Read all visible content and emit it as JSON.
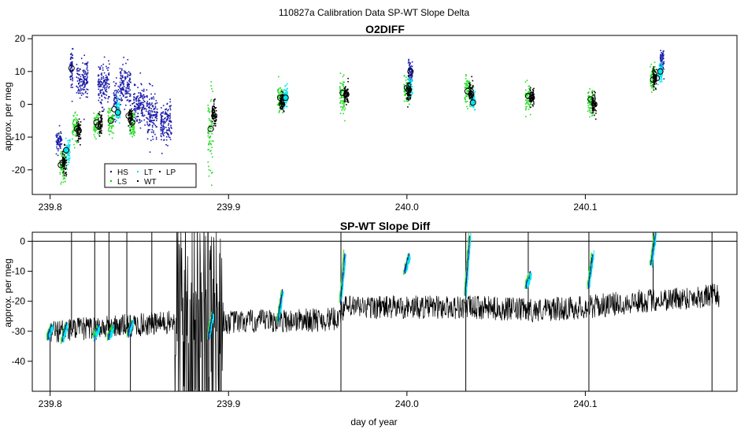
{
  "figure": {
    "title": "110827a   Calibration Data SP-WT Slope Delta",
    "xlabel": "day of year"
  },
  "chart_data": [
    {
      "type": "scatter",
      "title": "O2DIFF",
      "ylabel": "approx. per meg",
      "xlim": [
        239.79,
        240.185
      ],
      "ylim": [
        -27.5,
        21
      ],
      "xticks": [
        239.8,
        239.9,
        240.0,
        240.1
      ],
      "xtick_labels": [
        "239.8",
        "239.9",
        "240.0",
        "240.1"
      ],
      "yticks": [
        -20,
        -10,
        0,
        10,
        20
      ],
      "ytick_labels": [
        "-20",
        "-10",
        "0",
        "10",
        "20"
      ],
      "legend": {
        "position": "bottom-left",
        "entries": [
          {
            "label": "HS",
            "color": "#000080"
          },
          {
            "label": "LS",
            "color": "#00cc00"
          },
          {
            "label": "LT",
            "color": "#00e5ee"
          },
          {
            "label": "WT",
            "color": "#000000"
          },
          {
            "label": "LP",
            "color": "#000000"
          }
        ]
      },
      "series": [
        {
          "name": "HS",
          "color": "#1a1aaa",
          "clusters": [
            {
              "x": 239.805,
              "w": 0.002,
              "y": -11,
              "sd": 1.5
            },
            {
              "x": 239.812,
              "w": 0.001,
              "y": 11,
              "sd": 2.5
            },
            {
              "x": 239.818,
              "w": 0.004,
              "y": 8,
              "sd": 3
            },
            {
              "x": 239.83,
              "w": 0.004,
              "y": 6,
              "sd": 3
            },
            {
              "x": 239.837,
              "w": 0.002,
              "y": 1,
              "sd": 3
            },
            {
              "x": 239.842,
              "w": 0.004,
              "y": 6,
              "sd": 3
            },
            {
              "x": 239.85,
              "w": 0.004,
              "y": 0,
              "sd": 3
            },
            {
              "x": 239.857,
              "w": 0.004,
              "y": -3,
              "sd": 3
            },
            {
              "x": 239.865,
              "w": 0.004,
              "y": -6,
              "sd": 3
            },
            {
              "x": 240.002,
              "w": 0.0015,
              "y": 10,
              "sd": 1.5
            },
            {
              "x": 240.143,
              "w": 0.0015,
              "y": 13,
              "sd": 2
            }
          ]
        },
        {
          "name": "LS",
          "color": "#22dd22",
          "clusters": [
            {
              "x": 239.807,
              "w": 0.002,
              "y": -19,
              "sd": 3
            },
            {
              "x": 239.814,
              "w": 0.002,
              "y": -7,
              "sd": 2
            },
            {
              "x": 239.826,
              "w": 0.002,
              "y": -6,
              "sd": 2
            },
            {
              "x": 239.834,
              "w": 0.002,
              "y": -5,
              "sd": 2
            },
            {
              "x": 239.846,
              "w": 0.002,
              "y": -6,
              "sd": 2
            },
            {
              "x": 239.89,
              "w": 0.002,
              "y": -8,
              "sd": 6
            },
            {
              "x": 239.929,
              "w": 0.002,
              "y": 2,
              "sd": 2
            },
            {
              "x": 239.964,
              "w": 0.002,
              "y": 3,
              "sd": 2.5
            },
            {
              "x": 240.0,
              "w": 0.002,
              "y": 4,
              "sd": 2
            },
            {
              "x": 240.034,
              "w": 0.002,
              "y": 4,
              "sd": 2
            },
            {
              "x": 240.068,
              "w": 0.002,
              "y": 2,
              "sd": 2
            },
            {
              "x": 240.103,
              "w": 0.002,
              "y": 1,
              "sd": 2
            },
            {
              "x": 240.138,
              "w": 0.002,
              "y": 8,
              "sd": 2
            }
          ]
        },
        {
          "name": "LT",
          "color": "#00e5ee",
          "clusters": [
            {
              "x": 239.81,
              "w": 0.0015,
              "y": -14,
              "sd": 2
            },
            {
              "x": 239.838,
              "w": 0.0015,
              "y": -2,
              "sd": 1.5
            },
            {
              "x": 239.932,
              "w": 0.0015,
              "y": 2,
              "sd": 2
            },
            {
              "x": 240.002,
              "w": 0.0015,
              "y": 5,
              "sd": 1.5
            },
            {
              "x": 240.037,
              "w": 0.0015,
              "y": 1,
              "sd": 1.5
            },
            {
              "x": 240.142,
              "w": 0.0015,
              "y": 10,
              "sd": 1.5
            }
          ]
        },
        {
          "name": "WT",
          "color": "#000000",
          "clusters": [
            {
              "x": 239.808,
              "w": 0.0015,
              "y": -18,
              "sd": 2
            },
            {
              "x": 239.816,
              "w": 0.0015,
              "y": -8,
              "sd": 1.5
            },
            {
              "x": 239.828,
              "w": 0.0015,
              "y": -6,
              "sd": 1.5
            },
            {
              "x": 239.845,
              "w": 0.0015,
              "y": -4,
              "sd": 1.5
            },
            {
              "x": 239.892,
              "w": 0.0015,
              "y": -3,
              "sd": 2
            },
            {
              "x": 239.93,
              "w": 0.0015,
              "y": 1,
              "sd": 1.5
            },
            {
              "x": 239.966,
              "w": 0.0015,
              "y": 3,
              "sd": 1.5
            },
            {
              "x": 240.001,
              "w": 0.0015,
              "y": 4,
              "sd": 1.5
            },
            {
              "x": 240.036,
              "w": 0.0015,
              "y": 3,
              "sd": 1.5
            },
            {
              "x": 240.07,
              "w": 0.0015,
              "y": 2,
              "sd": 1.5
            },
            {
              "x": 240.105,
              "w": 0.0015,
              "y": 0,
              "sd": 1.5
            },
            {
              "x": 240.139,
              "w": 0.0015,
              "y": 8,
              "sd": 1.5
            }
          ]
        }
      ],
      "means": [
        {
          "x": 239.806,
          "y": -18.5,
          "fill": "none"
        },
        {
          "x": 239.807,
          "y": -17.8,
          "fill": "none"
        },
        {
          "x": 239.809,
          "y": -14,
          "fill": "#00e5ee"
        },
        {
          "x": 239.812,
          "y": 11,
          "fill": "none"
        },
        {
          "x": 239.815,
          "y": -7.5,
          "fill": "none"
        },
        {
          "x": 239.816,
          "y": -8,
          "fill": "none"
        },
        {
          "x": 239.826,
          "y": -5.5,
          "fill": "none"
        },
        {
          "x": 239.827,
          "y": -6.5,
          "fill": "none"
        },
        {
          "x": 239.834,
          "y": -5,
          "fill": "none"
        },
        {
          "x": 239.836,
          "y": -1.5,
          "fill": "none"
        },
        {
          "x": 239.838,
          "y": -2.5,
          "fill": "#00e5ee"
        },
        {
          "x": 239.844,
          "y": -3.5,
          "fill": "none"
        },
        {
          "x": 239.846,
          "y": -5.5,
          "fill": "none"
        },
        {
          "x": 239.89,
          "y": -7.5,
          "fill": "none"
        },
        {
          "x": 239.892,
          "y": -3.5,
          "fill": "none"
        },
        {
          "x": 239.929,
          "y": 2,
          "fill": "none"
        },
        {
          "x": 239.93,
          "y": 0,
          "fill": "none"
        },
        {
          "x": 239.932,
          "y": 2,
          "fill": "#00e5ee"
        },
        {
          "x": 239.964,
          "y": 3.5,
          "fill": "none"
        },
        {
          "x": 239.966,
          "y": 3,
          "fill": "none"
        },
        {
          "x": 240.0,
          "y": 5,
          "fill": "none"
        },
        {
          "x": 240.001,
          "y": 4.5,
          "fill": "none"
        },
        {
          "x": 240.002,
          "y": 10,
          "fill": "none"
        },
        {
          "x": 240.034,
          "y": 4,
          "fill": "none"
        },
        {
          "x": 240.036,
          "y": 3,
          "fill": "none"
        },
        {
          "x": 240.037,
          "y": 0.5,
          "fill": "#00e5ee"
        },
        {
          "x": 240.068,
          "y": 2.5,
          "fill": "none"
        },
        {
          "x": 240.07,
          "y": 2,
          "fill": "none"
        },
        {
          "x": 240.103,
          "y": 1.5,
          "fill": "none"
        },
        {
          "x": 240.105,
          "y": 0,
          "fill": "none"
        },
        {
          "x": 240.138,
          "y": 7.5,
          "fill": "none"
        },
        {
          "x": 240.14,
          "y": 8,
          "fill": "none"
        },
        {
          "x": 240.142,
          "y": 10,
          "fill": "#00e5ee"
        }
      ]
    },
    {
      "type": "line",
      "title": "SP-WT Slope Diff",
      "ylabel": "approx. per meg",
      "xlim": [
        239.79,
        240.185
      ],
      "ylim": [
        -50,
        3
      ],
      "xticks": [
        239.8,
        239.9,
        240.0,
        240.1
      ],
      "xtick_labels": [
        "239.8",
        "239.9",
        "240.0",
        "240.1"
      ],
      "yticks": [
        -40,
        -30,
        -20,
        -10,
        0
      ],
      "ytick_labels": [
        "-40",
        "-30",
        "-20",
        "-10",
        "0"
      ],
      "reference_line_y": 0,
      "baseline": [
        {
          "x": 239.8,
          "y": -30
        },
        {
          "x": 239.87,
          "y": -27
        },
        {
          "x": 239.9,
          "y": -27
        },
        {
          "x": 239.96,
          "y": -26
        },
        {
          "x": 239.965,
          "y": -22
        },
        {
          "x": 240.0,
          "y": -22
        },
        {
          "x": 240.035,
          "y": -22
        },
        {
          "x": 240.07,
          "y": -23
        },
        {
          "x": 240.1,
          "y": -22
        },
        {
          "x": 240.13,
          "y": -20
        },
        {
          "x": 240.175,
          "y": -18
        }
      ],
      "noise_amplitude": 4,
      "high_noise_region": {
        "start": 239.87,
        "end": 239.897,
        "amplitude": 40
      },
      "spikes": [
        {
          "x": 239.812,
          "y": 3
        },
        {
          "x": 239.825,
          "y": 3
        },
        {
          "x": 239.833,
          "y": 3
        },
        {
          "x": 239.843,
          "y": 3
        },
        {
          "x": 239.857,
          "y": 3
        },
        {
          "x": 239.963,
          "y": 3
        },
        {
          "x": 240.033,
          "y": 3
        },
        {
          "x": 240.068,
          "y": 3
        },
        {
          "x": 240.102,
          "y": 3
        },
        {
          "x": 240.138,
          "y": 3
        },
        {
          "x": 240.171,
          "y": 3
        },
        {
          "x": 239.8,
          "y": -50
        },
        {
          "x": 239.825,
          "y": -50
        },
        {
          "x": 239.845,
          "y": -50
        },
        {
          "x": 239.963,
          "y": -50
        },
        {
          "x": 240.033,
          "y": -50
        },
        {
          "x": 240.102,
          "y": -50
        },
        {
          "x": 240.171,
          "y": -50
        }
      ],
      "event_ramps": [
        {
          "x": 239.8,
          "y0": -32,
          "y1": -28
        },
        {
          "x": 239.808,
          "y0": -33,
          "y1": -28
        },
        {
          "x": 239.826,
          "y0": -32,
          "y1": -29
        },
        {
          "x": 239.834,
          "y0": -32,
          "y1": -29
        },
        {
          "x": 239.845,
          "y0": -31,
          "y1": -27
        },
        {
          "x": 239.89,
          "y0": -32,
          "y1": -24
        },
        {
          "x": 239.929,
          "y0": -26,
          "y1": -17
        },
        {
          "x": 239.964,
          "y0": -20,
          "y1": -4
        },
        {
          "x": 240.0,
          "y0": -10,
          "y1": -5
        },
        {
          "x": 240.034,
          "y0": -18,
          "y1": 2
        },
        {
          "x": 240.068,
          "y0": -15,
          "y1": -11
        },
        {
          "x": 240.103,
          "y0": -15,
          "y1": -4
        },
        {
          "x": 240.138,
          "y0": -8,
          "y1": 2
        }
      ],
      "event_colors": {
        "HS": "#1a1aaa",
        "LS": "#22dd22",
        "LT": "#00e5ee"
      }
    }
  ]
}
